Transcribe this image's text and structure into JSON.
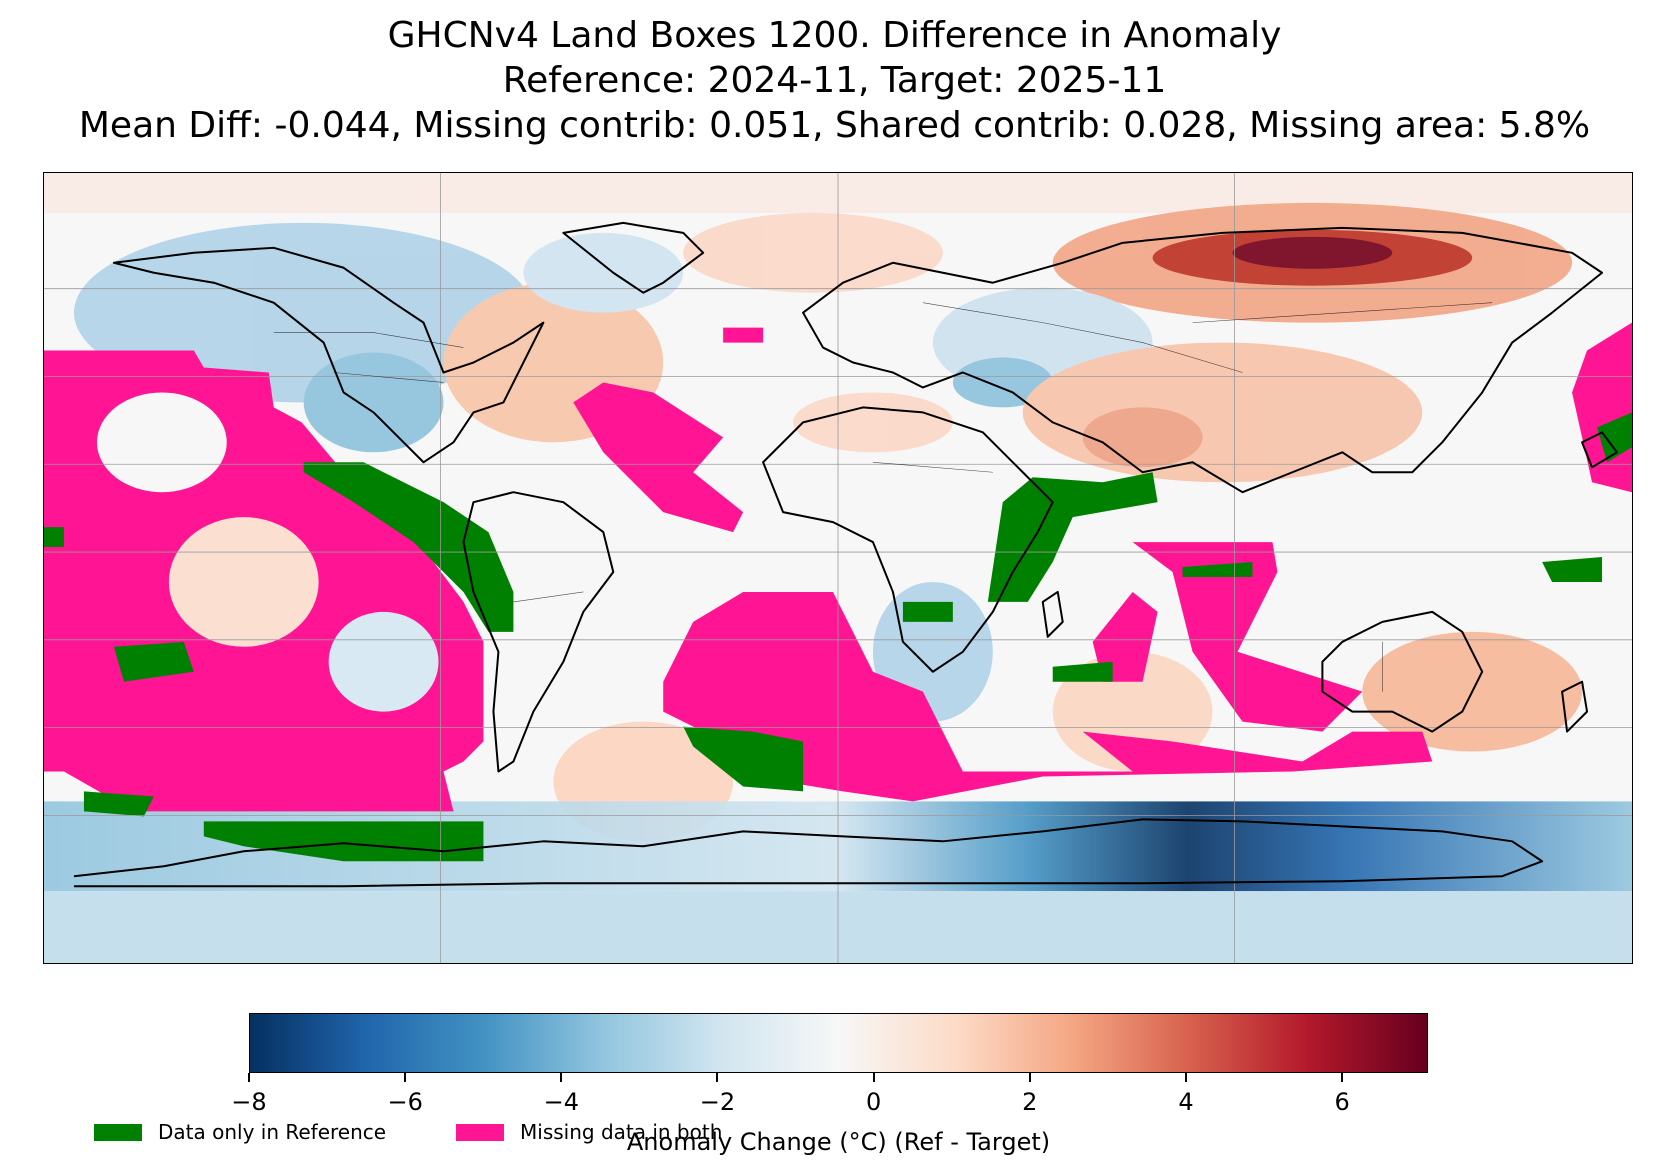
{
  "title": {
    "line1": "GHCNv4 Land Boxes 1200. Difference in Anomaly",
    "line2": "Reference: 2024-11, Target: 2025-11",
    "line3": "Mean Diff: -0.044, Missing contrib: 0.051, Shared contrib: 0.028, Missing area: 5.8%"
  },
  "colors": {
    "missing_both": "#ff1493",
    "ref_only": "#008000",
    "ocean_neutral": "#f7f7f7",
    "colormap": [
      "#053061",
      "#2166ac",
      "#4393c3",
      "#92c5de",
      "#d1e5f0",
      "#f7f7f7",
      "#fddbc7",
      "#f4a582",
      "#d6604d",
      "#b2182b",
      "#67001f"
    ]
  },
  "colorbar": {
    "label": "Anomaly Change (°C) (Ref - Target)",
    "range": [
      -8,
      7.1
    ],
    "ticks": [
      "−8",
      "−6",
      "−4",
      "−2",
      "0",
      "2",
      "4",
      "6"
    ],
    "tick_values": [
      -8,
      -6,
      -4,
      -2,
      0,
      2,
      4,
      6
    ]
  },
  "legend": {
    "ref_only_label": "Data only in Reference",
    "missing_both_label": "Missing data in both"
  }
}
